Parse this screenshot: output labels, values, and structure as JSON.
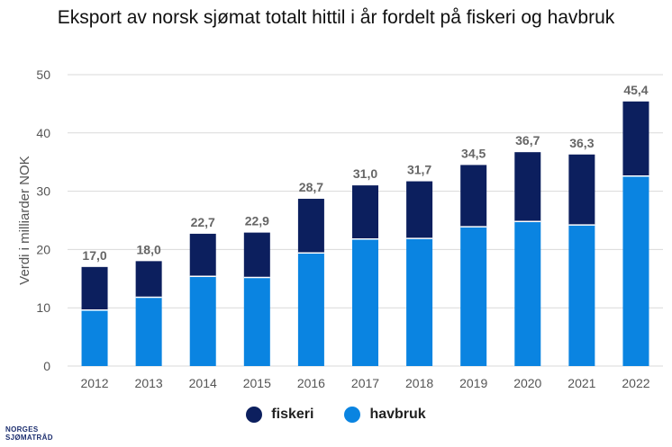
{
  "title": "Eksport av norsk sjømat totalt hittil i år fordelt på fiskeri og havbruk",
  "logo": {
    "line1": "NORGES",
    "line2": "SJØMATRÅD"
  },
  "colors": {
    "fiskeri": "#0c1f5e",
    "havbruk": "#0a84e1",
    "grid": "#d9d9d9"
  },
  "chart_data": {
    "type": "bar",
    "stacked": true,
    "title": "Eksport av norsk sjømat totalt hittil i år fordelt på fiskeri og havbruk",
    "xlabel": "",
    "ylabel": "Verdi i milliarder NOK",
    "ylim": [
      0,
      50
    ],
    "yticks": [
      0,
      10,
      20,
      30,
      40,
      50
    ],
    "grid": true,
    "legend_position": "bottom",
    "categories": [
      "2012",
      "2013",
      "2014",
      "2015",
      "2016",
      "2017",
      "2018",
      "2019",
      "2020",
      "2021",
      "2022"
    ],
    "series": [
      {
        "name": "havbruk",
        "values": [
          9.6,
          11.8,
          15.4,
          15.2,
          19.4,
          21.8,
          21.9,
          23.9,
          24.8,
          24.2,
          32.6
        ]
      },
      {
        "name": "fiskeri",
        "values": [
          7.4,
          6.2,
          7.3,
          7.7,
          9.3,
          9.2,
          9.8,
          10.6,
          11.9,
          12.1,
          12.8
        ]
      }
    ],
    "total_labels": [
      "17,0",
      "18,0",
      "22,7",
      "22,9",
      "28,7",
      "31,0",
      "31,7",
      "34,5",
      "36,7",
      "36,3",
      "45,4"
    ]
  }
}
